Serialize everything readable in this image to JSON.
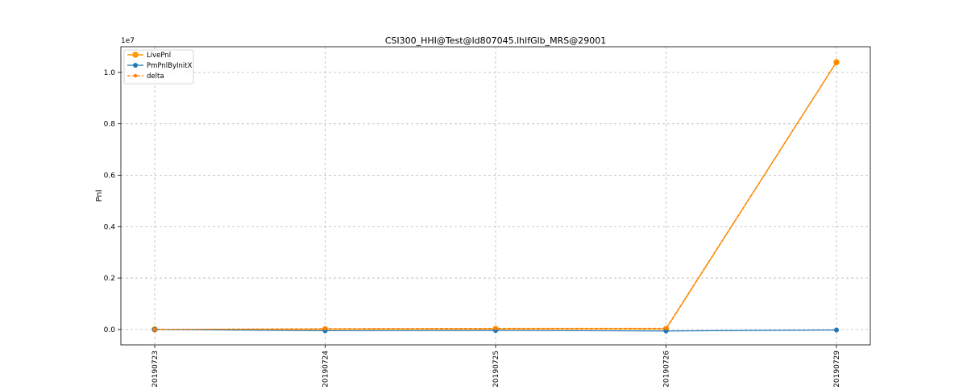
{
  "chart_data": {
    "type": "line",
    "title": "CSI300_HHI@Test@ld807045.lhlfGlb_MRS@29001",
    "xlabel": "",
    "ylabel": "Pnl",
    "y_offset_label": "1e7",
    "categories": [
      "20190723",
      "20190724",
      "20190725",
      "20190726",
      "20190729"
    ],
    "series": [
      {
        "name": "LivePnl",
        "color": "#ff9900",
        "line_style": "solid",
        "marker": "circle-large",
        "values": [
          0.0,
          0.001,
          0.002,
          0.002,
          1.04
        ]
      },
      {
        "name": "PmPnlByInitX",
        "color": "#1f77b4",
        "line_style": "solid",
        "marker": "circle",
        "values": [
          0.0,
          -0.005,
          -0.004,
          -0.006,
          -0.002
        ]
      },
      {
        "name": "delta",
        "color": "#ff7f0e",
        "line_style": "dashed",
        "marker": "circle-small",
        "values": [
          0.0,
          0.003,
          0.004,
          0.004,
          1.04
        ]
      }
    ],
    "yticks": [
      0.0,
      0.2,
      0.4,
      0.6,
      0.8,
      1.0
    ],
    "ytick_labels": [
      "0.0",
      "0.2",
      "0.4",
      "0.6",
      "0.8",
      "1.0"
    ],
    "ylim": [
      -0.06,
      1.1
    ],
    "grid": true,
    "legend_position": "top-left"
  }
}
